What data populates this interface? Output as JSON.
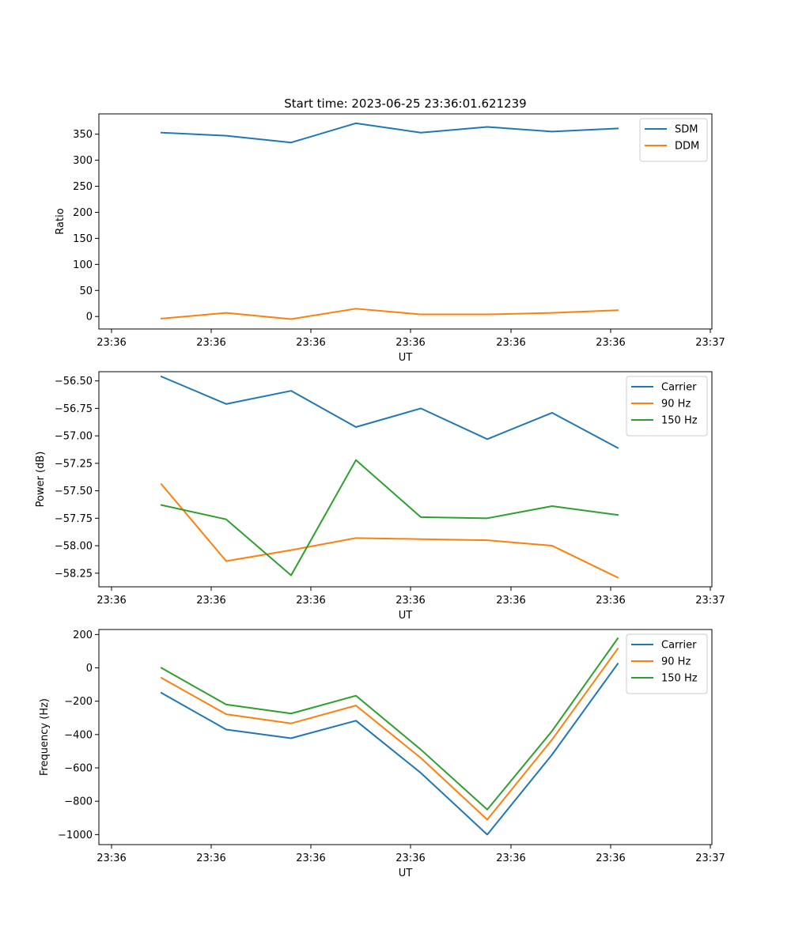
{
  "chart_data": [
    {
      "type": "line",
      "title": "Start time: 2023-06-25 23:36:01.621239",
      "xlabel": "UT",
      "ylabel": "Ratio",
      "x_tick_labels": [
        "23:36",
        "23:36",
        "23:36",
        "23:36",
        "23:36",
        "23:36",
        "23:36"
      ],
      "x_last_tick_label": "23:37",
      "y_ticks": [
        0,
        50,
        100,
        150,
        200,
        250,
        300,
        350
      ],
      "ylim": [
        -24,
        389
      ],
      "grid": false,
      "legend_position": "upper right",
      "series": [
        {
          "name": "SDM",
          "color": "#1f77b4",
          "values": [
            353,
            347,
            334,
            371,
            353,
            364,
            355,
            361
          ]
        },
        {
          "name": "DDM",
          "color": "#ff7f0e",
          "values": [
            -4,
            7,
            -5,
            15,
            4,
            4,
            7,
            12
          ]
        }
      ]
    },
    {
      "type": "line",
      "title": "",
      "xlabel": "UT",
      "ylabel": "Power (dB)",
      "x_tick_labels": [
        "23:36",
        "23:36",
        "23:36",
        "23:36",
        "23:36",
        "23:36",
        "23:36"
      ],
      "x_last_tick_label": "23:37",
      "y_ticks": [
        -58.25,
        -58.0,
        -57.75,
        -57.5,
        -57.25,
        -57.0,
        -56.75,
        -56.5
      ],
      "y_tick_labels": [
        "−58.25",
        "−58.00",
        "−57.75",
        "−57.50",
        "−57.25",
        "−57.00",
        "−56.75",
        "−56.50"
      ],
      "ylim": [
        -58.374,
        -56.416
      ],
      "grid": false,
      "legend_position": "upper right",
      "series": [
        {
          "name": "Carrier",
          "color": "#1f77b4",
          "values": [
            -56.46,
            -56.71,
            -56.59,
            -56.92,
            -56.75,
            -57.03,
            -56.79,
            -57.11
          ]
        },
        {
          "name": "90 Hz",
          "color": "#ff7f0e",
          "values": [
            -57.44,
            -58.14,
            -58.04,
            -57.93,
            -57.94,
            -57.95,
            -58.0,
            -58.29
          ]
        },
        {
          "name": "150 Hz",
          "color": "#2ca02c",
          "values": [
            -57.63,
            -57.76,
            -58.27,
            -57.22,
            -57.74,
            -57.75,
            -57.64,
            -57.72
          ]
        }
      ]
    },
    {
      "type": "line",
      "title": "",
      "xlabel": "UT",
      "ylabel": "Frequency (Hz)",
      "x_tick_labels": [
        "23:36",
        "23:36",
        "23:36",
        "23:36",
        "23:36",
        "23:36",
        "23:36"
      ],
      "x_last_tick_label": "23:37",
      "y_ticks": [
        -1000,
        -800,
        -600,
        -400,
        -200,
        0,
        200
      ],
      "y_tick_labels": [
        "−1000",
        "−800",
        "−600",
        "−400",
        "−200",
        "0",
        "200"
      ],
      "ylim": [
        -1060,
        230
      ],
      "grid": false,
      "legend_position": "upper right",
      "series": [
        {
          "name": "Carrier",
          "color": "#1f77b4",
          "values": [
            -150,
            -370,
            -422,
            -317,
            -630,
            -1000,
            -520,
            25
          ]
        },
        {
          "name": "90 Hz",
          "color": "#ff7f0e",
          "values": [
            -60,
            -278,
            -333,
            -226,
            -540,
            -910,
            -430,
            115
          ]
        },
        {
          "name": "150 Hz",
          "color": "#2ca02c",
          "values": [
            0,
            -220,
            -274,
            -167,
            -490,
            -850,
            -378,
            177
          ]
        }
      ]
    }
  ]
}
